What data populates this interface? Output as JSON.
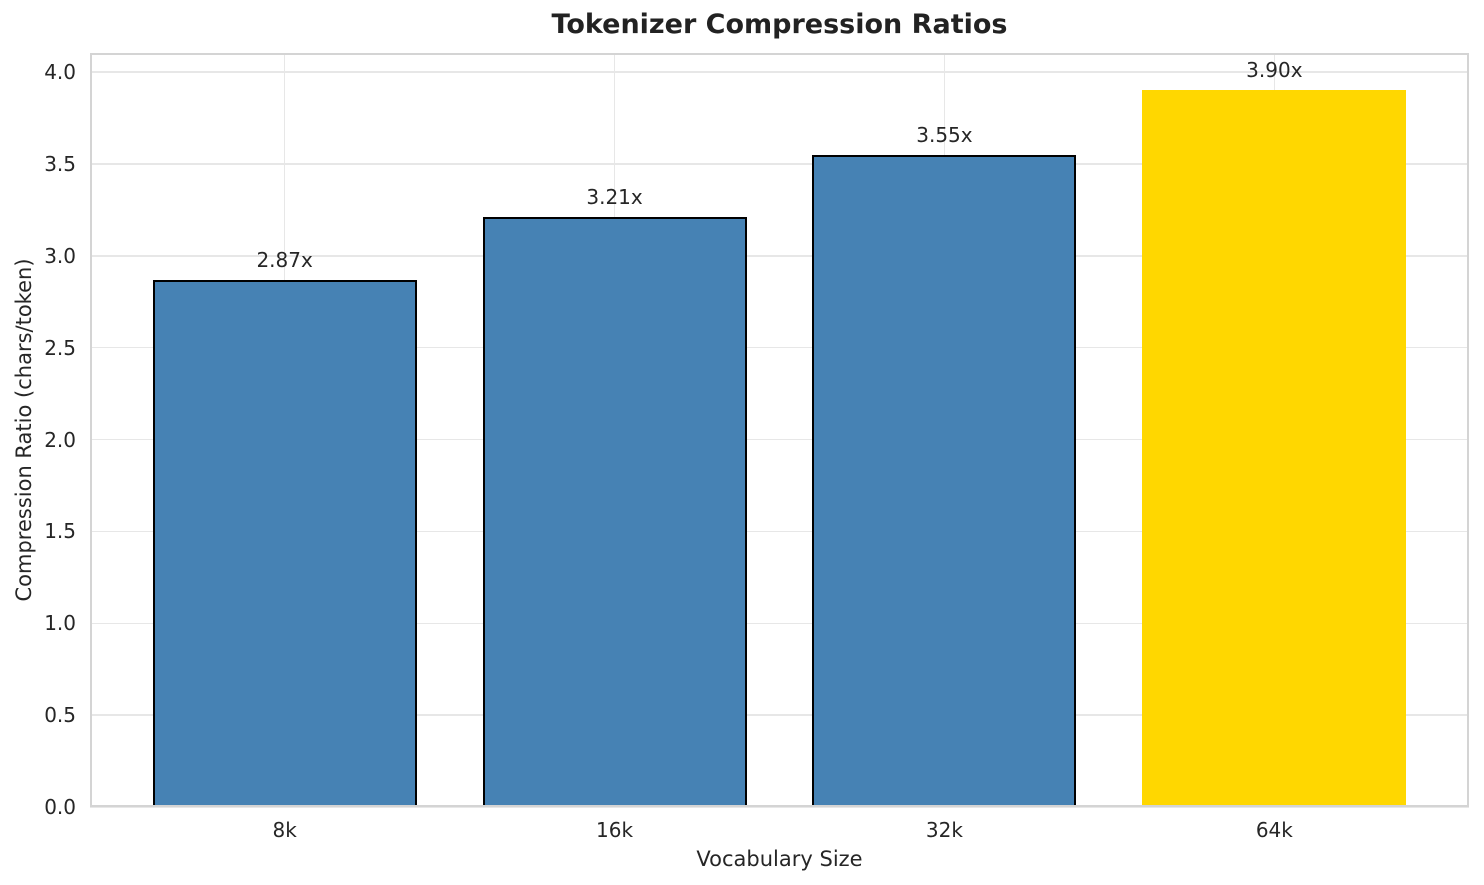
{
  "chart_data": {
    "type": "bar",
    "title": "Tokenizer Compression Ratios",
    "xlabel": "Vocabulary Size",
    "ylabel": "Compression Ratio (chars/token)",
    "categories": [
      "8k",
      "16k",
      "32k",
      "64k"
    ],
    "values": [
      2.87,
      3.21,
      3.55,
      3.9
    ],
    "bar_labels": [
      "2.87x",
      "3.21x",
      "3.55x",
      "3.90x"
    ],
    "bar_colors": [
      "#4682B4",
      "#4682B4",
      "#4682B4",
      "#FFD700"
    ],
    "bar_edge_colors": [
      "#000000",
      "#000000",
      "#000000",
      "none"
    ],
    "ylim": [
      0,
      4.104
    ],
    "ytick_labels": [
      "0.0",
      "0.5",
      "1.0",
      "1.5",
      "2.0",
      "2.5",
      "3.0",
      "3.5",
      "4.0"
    ],
    "grid": true,
    "legend_position": "none"
  },
  "colors": {
    "bar_default": "#4682B4",
    "bar_highlight": "#FFD700",
    "grid": "#e7e7e7",
    "spine": "#d4d4d4",
    "text": "#262626"
  }
}
